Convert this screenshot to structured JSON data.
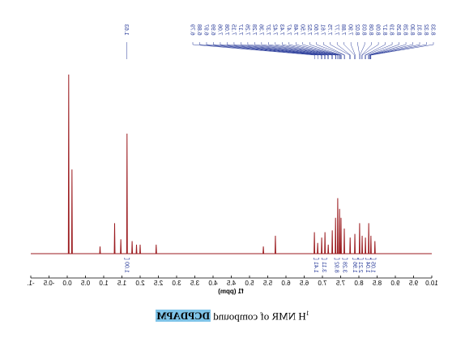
{
  "chart_data": {
    "type": "line",
    "x_label": "f1 (ppm)",
    "color": "#9b1b1f",
    "label_color": "#2a3c9a",
    "xlim": [
      -1,
      10
    ],
    "ylim": [
      0,
      100
    ],
    "xticks": [
      {
        "value": -1,
        "label": "-1."
      },
      -0.5,
      {
        "value": 0,
        "label": "0.0"
      },
      0.5,
      {
        "value": 1,
        "label": "1.0"
      },
      1.5,
      {
        "value": 2,
        "label": "2.0"
      },
      2.5,
      {
        "value": 3,
        "label": "3.0"
      },
      3.5,
      {
        "value": 4,
        "label": "4.0"
      },
      4.5,
      {
        "value": 5,
        "label": "5.0"
      },
      5.5,
      {
        "value": 6,
        "label": "6.0"
      },
      6.5,
      {
        "value": 7,
        "label": "7.0"
      },
      7.5,
      {
        "value": 8,
        "label": "8.0"
      },
      8.5,
      {
        "value": 9,
        "label": "9.0"
      },
      9.5,
      {
        "value": 10,
        "label": "10.0"
      }
    ],
    "x": [
      -1,
      0.03,
      0.04,
      0.05,
      0.12,
      0.13,
      0.14,
      0.89,
      0.9,
      0.91,
      1.29,
      1.3,
      1.31,
      1.46,
      1.47,
      1.48,
      1.63,
      1.64,
      1.65,
      1.77,
      1.78,
      1.79,
      1.89,
      1.9,
      1.91,
      1.99,
      2.0,
      2.01,
      2.43,
      2.44,
      2.45,
      5.37,
      5.38,
      5.39,
      5.7,
      5.71,
      5.72,
      6.77,
      6.78,
      6.79,
      6.86,
      6.87,
      6.88,
      6.97,
      6.98,
      6.99,
      7.06,
      7.07,
      7.08,
      7.15,
      7.16,
      7.17,
      7.26,
      7.27,
      7.28,
      7.35,
      7.36,
      7.37,
      7.41,
      7.42,
      7.43,
      7.46,
      7.47,
      7.48,
      7.5,
      7.51,
      7.52,
      7.59,
      7.6,
      7.61,
      7.75,
      7.76,
      7.77,
      7.88,
      7.89,
      7.9,
      8.01,
      8.02,
      8.03,
      8.08,
      8.09,
      8.1,
      8.17,
      8.18,
      8.19,
      8.26,
      8.27,
      8.28,
      8.32,
      8.33,
      8.34,
      8.43,
      8.44,
      8.45,
      10
    ],
    "values": [
      0,
      0,
      100,
      0,
      0,
      47,
      0,
      0,
      4,
      0,
      0,
      17,
      0,
      0,
      8,
      0,
      0,
      67,
      0,
      0,
      7,
      0,
      0,
      5,
      0,
      0,
      5,
      0,
      0,
      5,
      0,
      0,
      4,
      0,
      0,
      10,
      0,
      0,
      12,
      0,
      0,
      6,
      0,
      0,
      9,
      0,
      0,
      12,
      0,
      0,
      5,
      0,
      0,
      13,
      0,
      0,
      20,
      0,
      0,
      31,
      0,
      0,
      25,
      0,
      0,
      20,
      0,
      0,
      14,
      0,
      0,
      9,
      0,
      0,
      11,
      0,
      0,
      17,
      0,
      0,
      10,
      0,
      0,
      9,
      0,
      0,
      17,
      0,
      0,
      10,
      0,
      0,
      7,
      0,
      0
    ],
    "peak_labels": [
      "1.63",
      "8.33",
      "8.32",
      "8.31",
      "8.30",
      "8.28",
      "8.26",
      "8.19",
      "8.17",
      "8.09",
      "8.08",
      "8.03",
      "8.02",
      "7.90",
      "7.88",
      "7.77",
      "7.75",
      "7.61",
      "7.60",
      "7.52",
      "7.50",
      "7.48",
      "7.47",
      "7.43",
      "7.42",
      "7.37",
      "7.36",
      "7.28",
      "7.26",
      "7.17",
      "7.15",
      "7.08",
      "7.06",
      "6.99",
      "6.97",
      "6.88",
      "6.79"
    ],
    "integrals": {
      "ppm": [
        1.64,
        6.83,
        7.05,
        7.4,
        7.62,
        7.9,
        8.05,
        8.25,
        8.4
      ],
      "values": [
        1,
        1.41,
        3.11,
        8.92,
        3.28,
        1.96,
        2.21,
        1.04,
        1.05
      ],
      "value_labels": [
        "1.00",
        "1.41",
        "3.11",
        "8.92",
        "3.28",
        "1.96",
        "2.21",
        "1.04",
        "1.05"
      ]
    }
  },
  "caption": {
    "superscript": "1",
    "text": "H NMR of compound ",
    "highlight": "DCPDAPM"
  }
}
